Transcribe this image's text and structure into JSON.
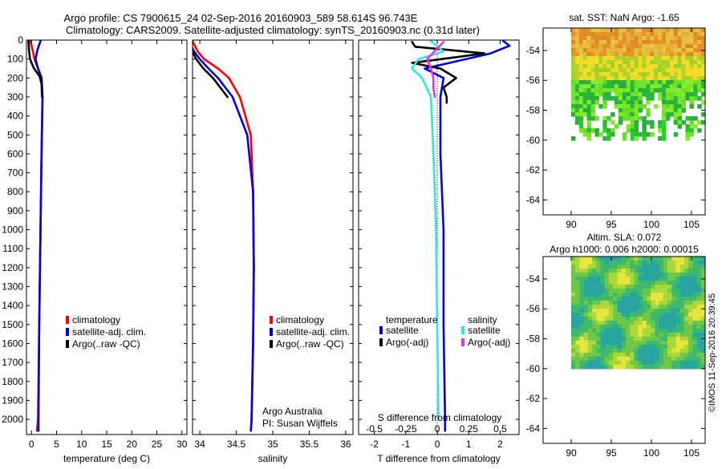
{
  "header": {
    "line1": "Argo profile: CS 7900615_24 02-Sep-2016 20160903_589 58.614S 96.743E",
    "line2": "Climatology: CARS2009. Satellite-adjusted climatology: synTS_20160903.nc (0.31d later)"
  },
  "colors": {
    "climatology": "#ff0000",
    "satellite": "#0000dd",
    "argo": "#000000",
    "sal_satellite": "#33e6e6",
    "sal_argo": "#e633e6"
  },
  "chart_data": [
    {
      "id": "temperature",
      "type": "line",
      "xlabel": "temperature (deg C)",
      "ylabel": "",
      "xlim": [
        -1,
        31
      ],
      "ylim": [
        2080,
        0
      ],
      "xticks": [
        0,
        5,
        10,
        15,
        20,
        25,
        30
      ],
      "yticks": [
        0,
        100,
        200,
        300,
        400,
        500,
        600,
        700,
        800,
        900,
        1000,
        1100,
        1200,
        1300,
        1400,
        1500,
        1600,
        1700,
        1800,
        1900,
        2000
      ],
      "legend": [
        "climatology",
        "satellite-adj. clim.",
        "Argo(..raw -QC)"
      ],
      "series": [
        {
          "name": "climatology",
          "color": "#ff0000",
          "points": [
            [
              -0.2,
              5
            ],
            [
              0.3,
              60
            ],
            [
              0.6,
              100
            ],
            [
              1.3,
              150
            ],
            [
              2.0,
              200
            ],
            [
              2.2,
              300
            ],
            [
              2.0,
              600
            ],
            [
              1.8,
              1000
            ],
            [
              1.55,
              1500
            ],
            [
              1.3,
              2000
            ],
            [
              1.1,
              2060
            ]
          ]
        },
        {
          "name": "satellite-adj. clim.",
          "color": "#0000dd",
          "points": [
            [
              1.8,
              5
            ],
            [
              1.2,
              50
            ],
            [
              0.8,
              100
            ],
            [
              1.3,
              150
            ],
            [
              2.0,
              200
            ],
            [
              2.2,
              300
            ],
            [
              2.0,
              600
            ],
            [
              1.8,
              1000
            ],
            [
              1.55,
              1500
            ],
            [
              1.4,
              2000
            ],
            [
              1.4,
              2060
            ]
          ]
        },
        {
          "name": "Argo(..raw -QC)",
          "color": "#000000",
          "points": [
            [
              -0.6,
              5
            ],
            [
              -0.5,
              50
            ],
            [
              -0.3,
              100
            ],
            [
              0.5,
              150
            ],
            [
              1.6,
              190
            ],
            [
              2.0,
              230
            ],
            [
              2.1,
              300
            ]
          ]
        }
      ]
    },
    {
      "id": "salinity",
      "type": "line",
      "xlabel": "salinity",
      "ylabel": "",
      "xlim": [
        33.9,
        36.1
      ],
      "ylim": [
        2080,
        0
      ],
      "xticks": [
        34,
        34.5,
        35,
        35.5,
        36
      ],
      "legend": [
        "climatology",
        "satellite-adj. clim.",
        "Argo(..raw -QC)"
      ],
      "annotations": [
        "Argo Australia",
        "PI: Susan Wijffels"
      ],
      "series": [
        {
          "name": "climatology",
          "color": "#ff0000",
          "points": [
            [
              33.9,
              5
            ],
            [
              33.97,
              60
            ],
            [
              34.06,
              100
            ],
            [
              34.25,
              150
            ],
            [
              34.4,
              200
            ],
            [
              34.55,
              300
            ],
            [
              34.7,
              500
            ],
            [
              34.73,
              800
            ],
            [
              34.74,
              1200
            ],
            [
              34.73,
              1600
            ],
            [
              34.71,
              2000
            ],
            [
              34.7,
              2060
            ]
          ]
        },
        {
          "name": "satellite-adj. clim.",
          "color": "#0000dd",
          "points": [
            [
              33.85,
              5
            ],
            [
              33.92,
              60
            ],
            [
              34.0,
              100
            ],
            [
              34.12,
              150
            ],
            [
              34.25,
              200
            ],
            [
              34.45,
              300
            ],
            [
              34.65,
              500
            ],
            [
              34.73,
              800
            ],
            [
              34.74,
              1200
            ],
            [
              34.73,
              1600
            ],
            [
              34.71,
              2000
            ],
            [
              34.7,
              2060
            ]
          ]
        },
        {
          "name": "Argo(..raw -QC)",
          "color": "#000000",
          "points": [
            [
              33.88,
              5
            ],
            [
              33.9,
              60
            ],
            [
              33.95,
              100
            ],
            [
              34.05,
              150
            ],
            [
              34.18,
              200
            ],
            [
              34.28,
              250
            ],
            [
              34.38,
              300
            ]
          ]
        }
      ]
    },
    {
      "id": "differences",
      "type": "line",
      "xlabel": "T difference from climatology",
      "x2label": "S difference from climatology",
      "xlim": [
        -2.5,
        2.6
      ],
      "x2lim": [
        -0.625,
        0.65
      ],
      "ylim": [
        2080,
        0
      ],
      "xticks": [
        -2,
        -1,
        0,
        1,
        2
      ],
      "xticklabels": [
        "-2",
        "-1",
        "0",
        "1",
        "2"
      ],
      "x2ticks": [
        -0.5,
        -0.25,
        0,
        0.25,
        0.5
      ],
      "x2ticklabels": [
        "-0.5",
        "-0.25",
        "0",
        "0.25",
        "0.5"
      ],
      "legend_headers": [
        "temperature",
        "salinity"
      ],
      "legend": [
        "satellite",
        "Argo(-adj)",
        "satellite",
        "Argo(-adj)"
      ],
      "series": [
        {
          "name": "satellite",
          "group": "temperature",
          "color": "#0000dd",
          "points": [
            [
              2.1,
              5
            ],
            [
              2.3,
              30
            ],
            [
              1.7,
              70
            ],
            [
              0.4,
              120
            ],
            [
              -0.4,
              150
            ],
            [
              0.2,
              200
            ],
            [
              0.1,
              300
            ],
            [
              0.1,
              600
            ],
            [
              0.2,
              1000
            ],
            [
              0.2,
              1500
            ],
            [
              0.25,
              2000
            ],
            [
              0.25,
              2060
            ]
          ]
        },
        {
          "name": "Argo(-adj)",
          "group": "temperature",
          "color": "#000000",
          "points": [
            [
              -0.8,
              10
            ],
            [
              -0.7,
              35
            ],
            [
              1.5,
              70
            ],
            [
              0.6,
              90
            ],
            [
              -0.8,
              120
            ],
            [
              0.1,
              150
            ],
            [
              0.6,
              200
            ],
            [
              0.2,
              250
            ],
            [
              0.3,
              300
            ],
            [
              0.3,
              330
            ]
          ]
        },
        {
          "name": "satellite",
          "group": "salinity",
          "color": "#33e6e6",
          "points": [
            [
              -0.05,
              5
            ],
            [
              0.05,
              60
            ],
            [
              -0.15,
              100
            ],
            [
              -0.2,
              150
            ],
            [
              -0.12,
              200
            ],
            [
              -0.05,
              300
            ],
            [
              -0.03,
              600
            ],
            [
              -0.01,
              1000
            ],
            [
              0.0,
              1500
            ],
            [
              0.01,
              2000
            ]
          ]
        },
        {
          "name": "Argo(-adj)",
          "group": "salinity",
          "color": "#e633e6",
          "points": [
            [
              0.05,
              10
            ],
            [
              -0.08,
              100
            ],
            [
              -0.05,
              150
            ],
            [
              -0.03,
              200
            ],
            [
              -0.03,
              250
            ],
            [
              -0.02,
              300
            ]
          ]
        }
      ]
    },
    {
      "id": "sst-map",
      "type": "heatmap",
      "title": "sat. SST: NaN Argo: -1.65",
      "xlim": [
        86.5,
        106.7
      ],
      "ylim": [
        -65,
        -52.5
      ],
      "xticks": [
        90,
        95,
        100,
        105
      ],
      "yticks": [
        -54,
        -56,
        -58,
        -60,
        -62,
        -64
      ],
      "yticklabels": [
        "-54",
        "-56",
        "-58",
        "-60",
        "-62",
        "-64"
      ],
      "data_extent": [
        90,
        106.7,
        -60,
        -52.5
      ]
    },
    {
      "id": "sla-map",
      "type": "heatmap",
      "title": "Altim. SLA: 0.072",
      "subtitle": "Argo h1000: 0.006 h2000: 0.00015",
      "xlim": [
        86.5,
        106.7
      ],
      "ylim": [
        -65,
        -52.5
      ],
      "xticks": [
        90,
        95,
        100,
        105
      ],
      "yticks": [
        -54,
        -56,
        -58,
        -60,
        -62,
        -64
      ],
      "yticklabels": [
        "-54",
        "-56",
        "-58",
        "-60",
        "-62",
        "-64"
      ],
      "data_extent": [
        90,
        106.7,
        -60,
        -52.5
      ]
    }
  ],
  "footer": {
    "stamp": "©IMOS 11-Sep-2016 20:39:45"
  }
}
